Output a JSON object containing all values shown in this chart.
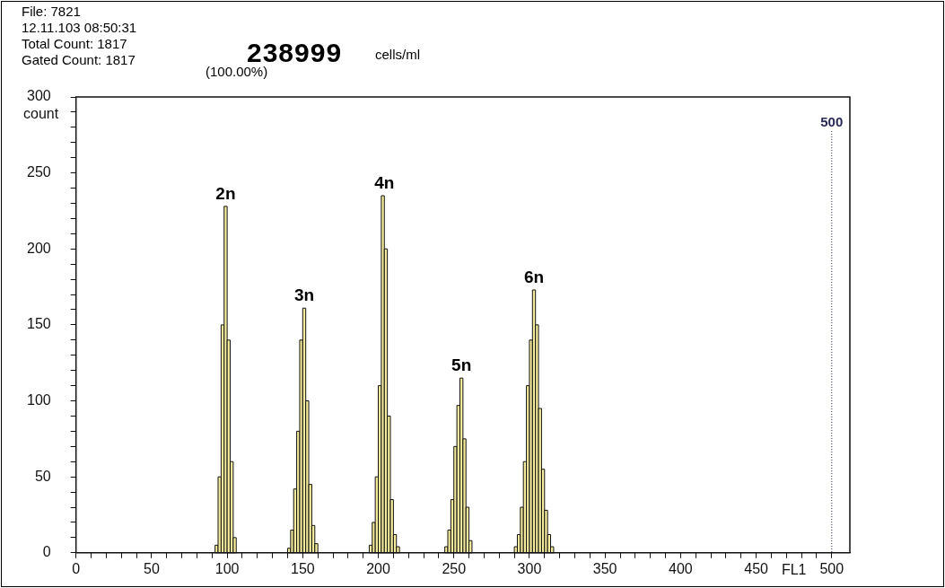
{
  "chart_data": {
    "type": "histogram",
    "xlabel": "FL1",
    "ylabel": "count",
    "bins": [
      92,
      94,
      96,
      98,
      100,
      102,
      104,
      106,
      140,
      142,
      144,
      146,
      148,
      150,
      152,
      154,
      156,
      158,
      160,
      194,
      196,
      198,
      200,
      202,
      204,
      206,
      208,
      210,
      212,
      214,
      244,
      246,
      248,
      250,
      252,
      254,
      256,
      258,
      260,
      262,
      290,
      292,
      294,
      296,
      298,
      300,
      302,
      304,
      306,
      308,
      310,
      312,
      314,
      316
    ],
    "values": [
      5,
      50,
      150,
      228,
      140,
      60,
      10,
      0,
      3,
      15,
      42,
      80,
      140,
      161,
      100,
      45,
      18,
      6,
      0,
      5,
      20,
      50,
      110,
      235,
      200,
      90,
      35,
      12,
      4,
      0,
      4,
      15,
      35,
      70,
      97,
      115,
      75,
      30,
      8,
      0,
      4,
      12,
      30,
      60,
      110,
      140,
      173,
      150,
      95,
      55,
      28,
      12,
      4
    ],
    "color": "#f4ec9c",
    "xlim": [
      0,
      512
    ],
    "ylim": [
      0,
      300
    ],
    "xticks": [
      0,
      {
        "value": 10,
        "label": null
      },
      {
        "value": 20,
        "label": null
      },
      {
        "value": 30,
        "label": null
      },
      {
        "value": 40,
        "label": null
      },
      50,
      {
        "value": 60,
        "label": null
      },
      {
        "value": 70,
        "label": null
      },
      {
        "value": 80,
        "label": null
      },
      {
        "value": 90,
        "label": null
      },
      100,
      {
        "value": 110,
        "label": null
      },
      {
        "value": 120,
        "label": null
      },
      {
        "value": 130,
        "label": null
      },
      {
        "value": 140,
        "label": null
      },
      150,
      {
        "value": 160,
        "label": null
      },
      {
        "value": 170,
        "label": null
      },
      {
        "value": 180,
        "label": null
      },
      {
        "value": 190,
        "label": null
      },
      200,
      {
        "value": 210,
        "label": null
      },
      {
        "value": 220,
        "label": null
      },
      {
        "value": 230,
        "label": null
      },
      {
        "value": 240,
        "label": null
      },
      250,
      {
        "value": 260,
        "label": null
      },
      {
        "value": 270,
        "label": null
      },
      {
        "value": 280,
        "label": null
      },
      {
        "value": 290,
        "label": null
      },
      300,
      {
        "value": 310,
        "label": null
      },
      {
        "value": 320,
        "label": null
      },
      {
        "value": 330,
        "label": null
      },
      {
        "value": 340,
        "label": null
      },
      350,
      {
        "value": 360,
        "label": null
      },
      {
        "value": 370,
        "label": null
      },
      {
        "value": 380,
        "label": null
      },
      {
        "value": 390,
        "label": null
      },
      400,
      {
        "value": 410,
        "label": null
      },
      {
        "value": 420,
        "label": null
      },
      {
        "value": 430,
        "label": null
      },
      {
        "value": 440,
        "label": null
      },
      450,
      {
        "value": 460,
        "label": null
      },
      {
        "value": 470,
        "label": null
      },
      {
        "value": 480,
        "label": null
      },
      {
        "value": 490,
        "label": null
      },
      500
    ],
    "yticks": [
      0,
      {
        "value": 10,
        "label": null
      },
      {
        "value": 20,
        "label": null
      },
      {
        "value": 30,
        "label": null
      },
      {
        "value": 40,
        "label": null
      },
      50,
      {
        "value": 60,
        "label": null
      },
      {
        "value": 70,
        "label": null
      },
      {
        "value": 80,
        "label": null
      },
      {
        "value": 90,
        "label": null
      },
      100,
      {
        "value": 110,
        "label": null
      },
      {
        "value": 120,
        "label": null
      },
      {
        "value": 130,
        "label": null
      },
      {
        "value": 140,
        "label": null
      },
      150,
      {
        "value": 160,
        "label": null
      },
      {
        "value": 170,
        "label": null
      },
      {
        "value": 180,
        "label": null
      },
      {
        "value": 190,
        "label": null
      },
      200,
      {
        "value": 210,
        "label": null
      },
      {
        "value": 220,
        "label": null
      },
      {
        "value": 230,
        "label": null
      },
      {
        "value": 240,
        "label": null
      },
      250,
      {
        "value": 260,
        "label": null
      },
      {
        "value": 270,
        "label": null
      },
      {
        "value": 280,
        "label": null
      },
      {
        "value": 290,
        "label": null
      },
      300
    ],
    "ref_lines": [
      {
        "axis": "x",
        "value": 500,
        "label": "500",
        "color": "#2a2a5a",
        "line_style": "dotted"
      }
    ],
    "annotations": [
      "File: 7821",
      "12.11.103  08:50:31",
      "Total Count:  1817",
      "Gated Count: 1817",
      "238999",
      "cells/ml",
      "(100.00%)",
      {
        "text": "2n",
        "x": 99,
        "y": 228
      },
      {
        "text": "3n",
        "x": 151,
        "y": 161
      },
      {
        "text": "4n",
        "x": 204,
        "y": 235
      },
      {
        "text": "5n",
        "x": 255,
        "y": 115
      },
      {
        "text": "6n",
        "x": 303,
        "y": 173
      }
    ]
  }
}
